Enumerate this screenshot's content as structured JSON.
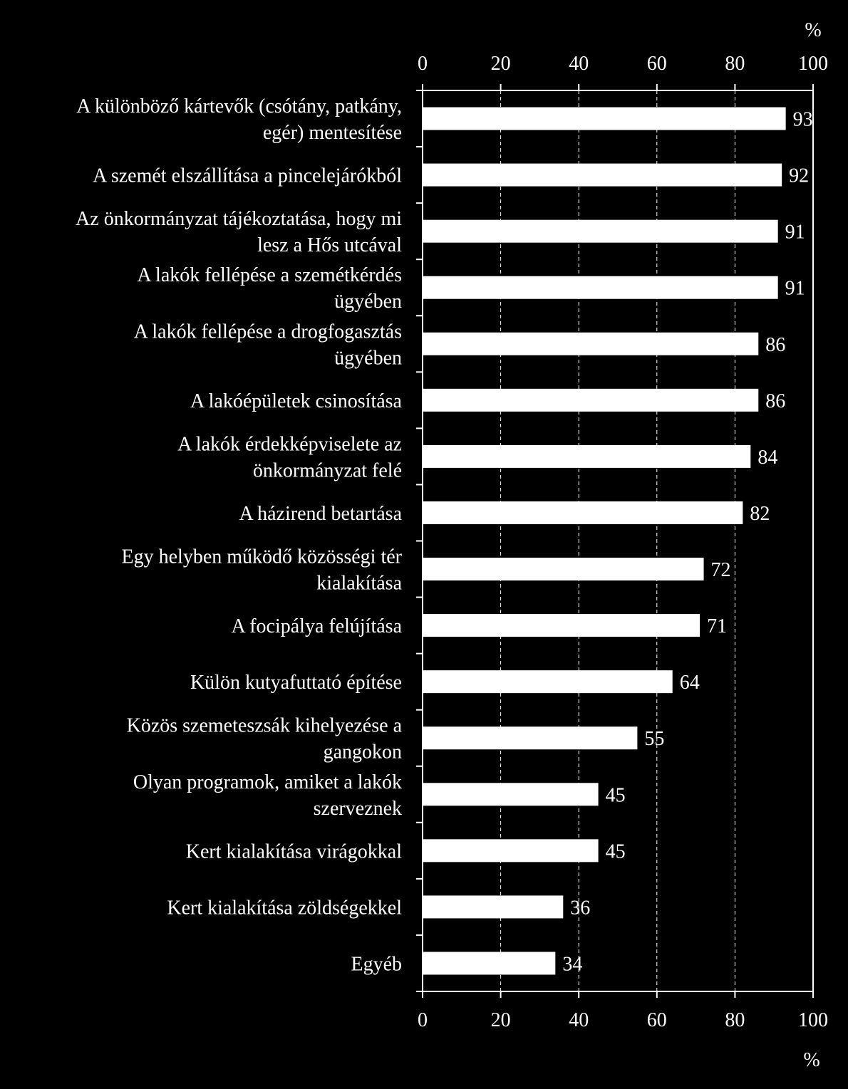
{
  "chart_data": {
    "type": "bar",
    "orientation": "horizontal",
    "unit_label": "%",
    "xlim": [
      0,
      100
    ],
    "ticks": [
      0,
      20,
      40,
      60,
      80,
      100
    ],
    "grid": true,
    "categories": [
      [
        "A különböző kártevők (csótány, patkány,",
        "egér) mentesítése"
      ],
      [
        "A szemét elszállítása a pincelejárókból"
      ],
      [
        "Az önkormányzat tájékoztatása, hogy mi",
        "lesz a Hős utcával"
      ],
      [
        "A lakók fellépése a szemétkérdés",
        "ügyében"
      ],
      [
        "A lakók fellépése a drogfogasztás",
        "ügyében"
      ],
      [
        "A lakóépületek csinosítása"
      ],
      [
        "A lakók érdekképviselete az",
        "önkormányzat felé"
      ],
      [
        "A házirend betartása"
      ],
      [
        "Egy helyben működő közösségi tér",
        "kialakítása"
      ],
      [
        "A focipálya felújítása"
      ],
      [
        "Külön kutyafuttató építése"
      ],
      [
        "Közös szemeteszsák kihelyezése a",
        "gangokon"
      ],
      [
        "Olyan programok, amiket a lakók",
        "szerveznek"
      ],
      [
        "Kert kialakítása virágokkal"
      ],
      [
        "Kert kialakítása zöldségekkel"
      ],
      [
        "Egyéb"
      ]
    ],
    "values": [
      93,
      92,
      91,
      91,
      86,
      86,
      84,
      82,
      72,
      71,
      64,
      55,
      45,
      45,
      36,
      34
    ],
    "colors": {
      "background": "#000000",
      "bar": "#ffffff",
      "text": "#ffffff",
      "axis": "#ffffff",
      "grid": "#ffffff"
    }
  }
}
